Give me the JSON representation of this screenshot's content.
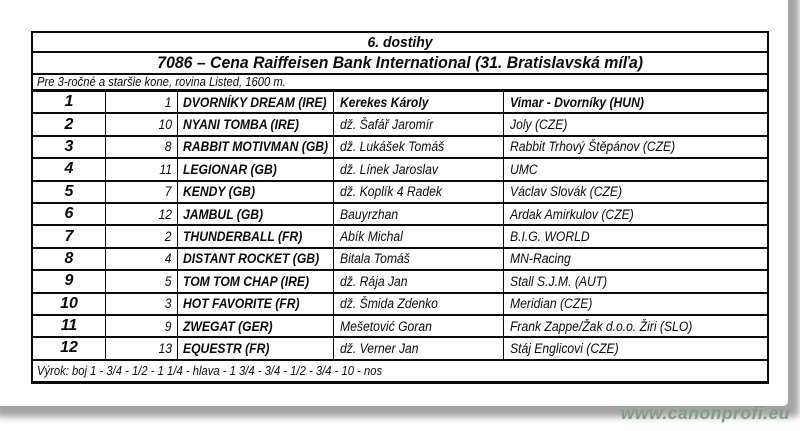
{
  "race_header": {
    "race_number_title": "6. dostihy",
    "race_title": "7086 – Cena Raiffeisen Bank International (31. Bratislavská míľa)",
    "race_conditions": "Pre 3-ročné a staršie kone, rovina Listed, 1600 m."
  },
  "results_table": {
    "rows": [
      {
        "position": "1",
        "start_number": "1",
        "horse": "DVORNÍKY DREAM (IRE)",
        "jockey": "Kerekes Károly",
        "owner": "Vimar - Dvorníky (HUN)",
        "winner": true
      },
      {
        "position": "2",
        "start_number": "10",
        "horse": "NYANI TOMBA (IRE)",
        "jockey": "dž. Šafář Jaromír",
        "owner": "Joly (CZE)",
        "winner": false
      },
      {
        "position": "3",
        "start_number": "8",
        "horse": "RABBIT MOTIVMAN (GB)",
        "jockey": "dž. Lukášek Tomáš",
        "owner": "Rabbit Trhový Štěpánov (CZE)",
        "winner": false
      },
      {
        "position": "4",
        "start_number": "11",
        "horse": "LEGIONAR (GB)",
        "jockey": "dž. Línek Jaroslav",
        "owner": "UMC",
        "winner": false
      },
      {
        "position": "5",
        "start_number": "7",
        "horse": "KENDY (GB)",
        "jockey": "dž. Koplík 4 Radek",
        "owner": "Václav Slovák (CZE)",
        "winner": false
      },
      {
        "position": "6",
        "start_number": "12",
        "horse": "JAMBUL (GB)",
        "jockey": "Bauyrzhan",
        "owner": "Ardak Amirkulov (CZE)",
        "winner": false
      },
      {
        "position": "7",
        "start_number": "2",
        "horse": "THUNDERBALL (FR)",
        "jockey": "Abík Michal",
        "owner": "B.I.G. WORLD",
        "winner": false
      },
      {
        "position": "8",
        "start_number": "4",
        "horse": "DISTANT ROCKET (GB)",
        "jockey": "Bitala Tomáš",
        "owner": "MN-Racing",
        "winner": false
      },
      {
        "position": "9",
        "start_number": "5",
        "horse": "TOM TOM CHAP (IRE)",
        "jockey": "dž. Rája Jan",
        "owner": "Stall S.J.M. (AUT)",
        "winner": false
      },
      {
        "position": "10",
        "start_number": "3",
        "horse": "HOT FAVORITE (FR)",
        "jockey": "dž. Šmida Zdenko",
        "owner": "Meridian (CZE)",
        "winner": false
      },
      {
        "position": "11",
        "start_number": "9",
        "horse": "ZWEGAT (GER)",
        "jockey": "Mešetović Goran",
        "owner": "Frank Zappe/Žak d.o.o. Žiri (SLO)",
        "winner": false
      },
      {
        "position": "12",
        "start_number": "13",
        "horse": "EQUESTR (FR)",
        "jockey": "dž. Verner Jan",
        "owner": "Stáj Englicovi (CZE)",
        "winner": false
      }
    ]
  },
  "footer": {
    "verdict": "Výrok: boj 1 - 3/4 - 1/2 - 1 1/4 - hlava - 1 3/4 - 3/4 - 1/2 - 3/4 - 10 - nos"
  },
  "watermark": {
    "text": "www.canonprofi.eu",
    "color": "#7f9e80"
  }
}
